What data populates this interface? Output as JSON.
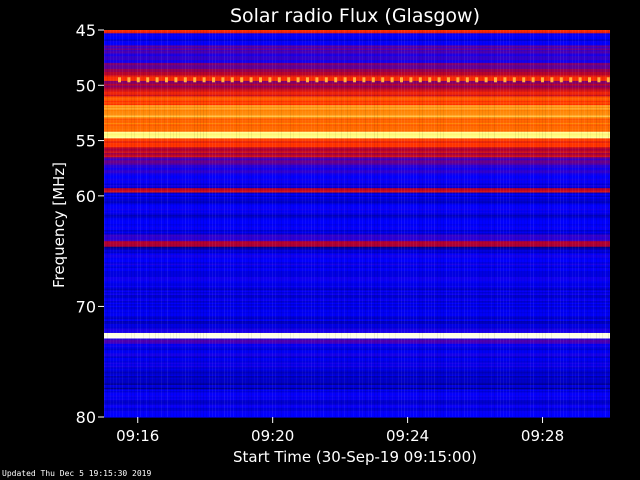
{
  "chart_data": {
    "type": "heatmap",
    "title": "Solar radio Flux (Glasgow)",
    "xlabel": "Start Time (30-Sep-19 09:15:00)",
    "ylabel": "Frequency [MHz]",
    "xlim": [
      "09:15:00",
      "09:30:00"
    ],
    "ylim": [
      45,
      80
    ],
    "y_inverted": true,
    "x_ticks": [
      "09:16",
      "09:20",
      "09:24",
      "09:28"
    ],
    "y_ticks": [
      45,
      50,
      55,
      60,
      70,
      80
    ],
    "y_tick_labels": [
      "45",
      "50",
      "55",
      "60",
      "70",
      "80"
    ],
    "colormap": [
      "#00008b",
      "#0000ff",
      "#4000c0",
      "#b00030",
      "#ff3000",
      "#ff8000",
      "#ffff80",
      "#ffffff"
    ],
    "bands_mhz": [
      {
        "from": 45.0,
        "to": 45.3,
        "level": 0.55
      },
      {
        "from": 45.3,
        "to": 46.4,
        "level": 0.12
      },
      {
        "from": 46.4,
        "to": 47.2,
        "level": 0.3
      },
      {
        "from": 47.2,
        "to": 48.0,
        "level": 0.22
      },
      {
        "from": 48.0,
        "to": 48.8,
        "level": 0.35
      },
      {
        "from": 48.8,
        "to": 49.2,
        "level": 0.45
      },
      {
        "from": 49.2,
        "to": 49.6,
        "level": 0.6
      },
      {
        "from": 49.6,
        "to": 50.3,
        "level": 0.38
      },
      {
        "from": 50.3,
        "to": 51.0,
        "level": 0.5
      },
      {
        "from": 51.0,
        "to": 51.8,
        "level": 0.62
      },
      {
        "from": 51.8,
        "to": 53.0,
        "level": 0.74
      },
      {
        "from": 53.0,
        "to": 54.2,
        "level": 0.7
      },
      {
        "from": 54.2,
        "to": 54.8,
        "level": 0.85
      },
      {
        "from": 54.8,
        "to": 55.6,
        "level": 0.58
      },
      {
        "from": 55.6,
        "to": 56.5,
        "level": 0.44
      },
      {
        "from": 56.5,
        "to": 57.2,
        "level": 0.32
      },
      {
        "from": 57.2,
        "to": 58.2,
        "level": 0.2
      },
      {
        "from": 58.2,
        "to": 59.3,
        "level": 0.14
      },
      {
        "from": 59.3,
        "to": 59.7,
        "level": 0.46
      },
      {
        "from": 59.7,
        "to": 60.5,
        "level": 0.1
      },
      {
        "from": 60.5,
        "to": 63.5,
        "level": 0.12
      },
      {
        "from": 63.5,
        "to": 64.1,
        "level": 0.25
      },
      {
        "from": 64.1,
        "to": 64.6,
        "level": 0.45
      },
      {
        "from": 64.6,
        "to": 65.2,
        "level": 0.05
      },
      {
        "from": 65.2,
        "to": 68.0,
        "level": 0.15
      },
      {
        "from": 68.0,
        "to": 72.0,
        "level": 0.11
      },
      {
        "from": 72.0,
        "to": 72.4,
        "level": 0.18
      },
      {
        "from": 72.4,
        "to": 72.9,
        "level": 0.98
      },
      {
        "from": 72.9,
        "to": 73.4,
        "level": 0.25
      },
      {
        "from": 73.4,
        "to": 75.5,
        "level": 0.14
      },
      {
        "from": 75.5,
        "to": 77.5,
        "level": 0.06
      },
      {
        "from": 77.5,
        "to": 80.0,
        "level": 0.12
      }
    ],
    "pulsed_line_mhz": 49.5
  },
  "footer": {
    "updated_text": "Updated Thu Dec  5 19:15:30 2019"
  }
}
